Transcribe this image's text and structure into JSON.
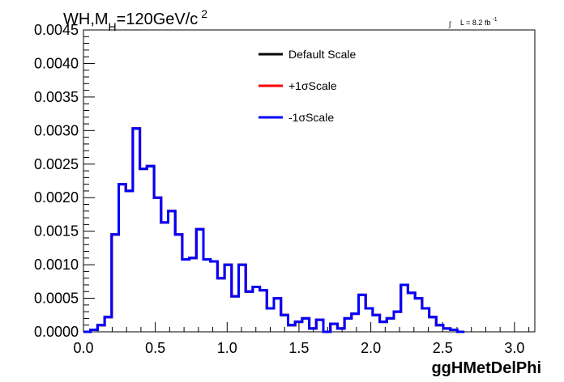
{
  "title": {
    "main": "WH,M",
    "subscript": "H",
    "rest": "=120GeV/c",
    "superscript": "2"
  },
  "lumi": {
    "integral": "∫",
    "text": "L = 8.2 fb",
    "superscript": "-1"
  },
  "colors": {
    "default": "#000000",
    "plus": "#ff0000",
    "minus": "#0000ff",
    "frame": "#000000",
    "background": "#ffffff"
  },
  "chart_data": {
    "type": "line",
    "subtype": "step-histogram",
    "title": "WH,MH=120GeV/c2",
    "xlabel": "ggHMetDelPhi",
    "ylabel": "",
    "xlim": [
      0.0,
      3.1416
    ],
    "ylim": [
      0.0,
      0.0045
    ],
    "grid": false,
    "legend_position": "top-center",
    "xticks": [
      "0.0",
      "0.5",
      "1.0",
      "1.5",
      "2.0",
      "2.5",
      "3.0"
    ],
    "xtick_values": [
      0.0,
      0.5,
      1.0,
      1.5,
      2.0,
      2.5,
      3.0
    ],
    "yticks": [
      "0.0000",
      "0.0005",
      "0.0010",
      "0.0015",
      "0.0020",
      "0.0025",
      "0.0030",
      "0.0035",
      "0.0040",
      "0.0045"
    ],
    "ytick_values": [
      0.0,
      0.0005,
      0.001,
      0.0015,
      0.002,
      0.0025,
      0.003,
      0.0035,
      0.004,
      0.0045
    ],
    "bin_edges_start": 0.0,
    "bin_width": 0.0491,
    "series": [
      {
        "name": "Default Scale",
        "color": "#000000",
        "values": [
          0.0,
          3e-05,
          0.0001,
          0.00022,
          0.00145,
          0.0022,
          0.0021,
          0.00303,
          0.00243,
          0.00247,
          0.002,
          0.00163,
          0.0018,
          0.00145,
          0.00108,
          0.0011,
          0.00153,
          0.00108,
          0.00105,
          0.0008,
          0.001,
          0.00053,
          0.001,
          0.0006,
          0.00067,
          0.00062,
          0.00035,
          0.0005,
          0.00025,
          0.0001,
          0.00015,
          0.0002,
          5e-05,
          0.00018,
          0.0,
          0.00012,
          5e-05,
          0.0002,
          0.00027,
          0.00055,
          0.00035,
          0.00025,
          0.00015,
          0.0002,
          0.0003,
          0.0007,
          0.00058,
          0.0005,
          0.00035,
          0.00022,
          0.0001,
          5e-05,
          3e-05,
          0.0
        ]
      },
      {
        "name": "+1σScale",
        "color": "#ff0000",
        "values": [
          0.0,
          3e-05,
          0.0001,
          0.00022,
          0.00145,
          0.0022,
          0.0021,
          0.00303,
          0.00243,
          0.00247,
          0.002,
          0.00163,
          0.0018,
          0.00145,
          0.00108,
          0.0011,
          0.00153,
          0.00108,
          0.00105,
          0.0008,
          0.001,
          0.00053,
          0.001,
          0.0006,
          0.00067,
          0.00062,
          0.00035,
          0.0005,
          0.00025,
          0.0001,
          0.00015,
          0.0002,
          5e-05,
          0.00018,
          0.0,
          0.00012,
          5e-05,
          0.0002,
          0.00027,
          0.00055,
          0.00035,
          0.00025,
          0.00015,
          0.0002,
          0.0003,
          0.0007,
          0.00058,
          0.0005,
          0.00035,
          0.00022,
          0.0001,
          5e-05,
          3e-05,
          0.0
        ]
      },
      {
        "name": "-1σScale",
        "color": "#0000ff",
        "values": [
          0.0,
          3e-05,
          0.0001,
          0.00022,
          0.00145,
          0.0022,
          0.0021,
          0.00303,
          0.00243,
          0.00247,
          0.002,
          0.00163,
          0.0018,
          0.00145,
          0.00108,
          0.0011,
          0.00153,
          0.00108,
          0.00105,
          0.0008,
          0.001,
          0.00053,
          0.001,
          0.0006,
          0.00067,
          0.00062,
          0.00035,
          0.0005,
          0.00025,
          0.0001,
          0.00015,
          0.0002,
          5e-05,
          0.00018,
          0.0,
          0.00012,
          5e-05,
          0.0002,
          0.00027,
          0.00055,
          0.00035,
          0.00025,
          0.00015,
          0.0002,
          0.0003,
          0.0007,
          0.00058,
          0.0005,
          0.00035,
          0.00022,
          0.0001,
          5e-05,
          3e-05,
          0.0
        ]
      }
    ]
  }
}
